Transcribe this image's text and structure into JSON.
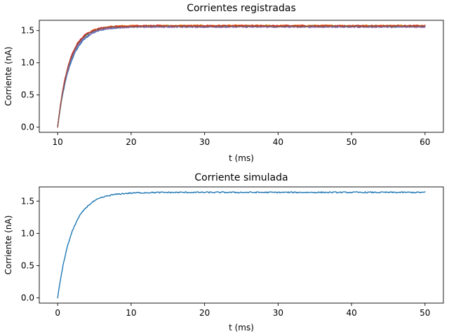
{
  "chart_data": [
    {
      "type": "line",
      "title": "Corrientes registradas",
      "xlabel": "t (ms)",
      "ylabel": "Corriente (nA)",
      "xlim": [
        7.5,
        62.5
      ],
      "ylim": [
        -0.08,
        1.66
      ],
      "xticks": [
        10,
        20,
        30,
        40,
        50,
        60
      ],
      "yticks": [
        0.0,
        0.5,
        1.0,
        1.5
      ],
      "xtick_labels": [
        "10",
        "20",
        "30",
        "40",
        "50",
        "60"
      ],
      "ytick_labels": [
        "0.0",
        "0.5",
        "1.0",
        "1.5"
      ],
      "grid": false,
      "model": {
        "t_start": 10,
        "t_end": 60,
        "asymptote": 1.57,
        "tau": 1.6
      },
      "series": [
        {
          "color": "#1f77b4",
          "asymptote": 1.56,
          "tau": 1.75
        },
        {
          "color": "#ff7f0e",
          "asymptote": 1.58,
          "tau": 1.6
        },
        {
          "color": "#2ca02c",
          "asymptote": 1.57,
          "tau": 1.62
        },
        {
          "color": "#d62728",
          "asymptote": 1.575,
          "tau": 1.55
        },
        {
          "color": "#9467bd",
          "asymptote": 1.555,
          "tau": 1.65
        },
        {
          "color": "#8c564b",
          "asymptote": 1.565,
          "tau": 1.58
        }
      ]
    },
    {
      "type": "line",
      "title": "Corriente simulada",
      "xlabel": "t (ms)",
      "ylabel": "Corriente (nA)",
      "xlim": [
        -2.5,
        52.5
      ],
      "ylim": [
        -0.08,
        1.72
      ],
      "xticks": [
        0,
        10,
        20,
        30,
        40,
        50
      ],
      "yticks": [
        0.0,
        0.5,
        1.0,
        1.5
      ],
      "xtick_labels": [
        "0",
        "10",
        "20",
        "30",
        "40",
        "50"
      ],
      "ytick_labels": [
        "0.0",
        "0.5",
        "1.0",
        "1.5"
      ],
      "grid": false,
      "model": {
        "t_start": 0,
        "t_end": 50,
        "asymptote": 1.635,
        "tau": 2.0
      },
      "series": [
        {
          "color": "#1f77b4",
          "asymptote": 1.635,
          "tau": 2.0
        }
      ]
    }
  ]
}
